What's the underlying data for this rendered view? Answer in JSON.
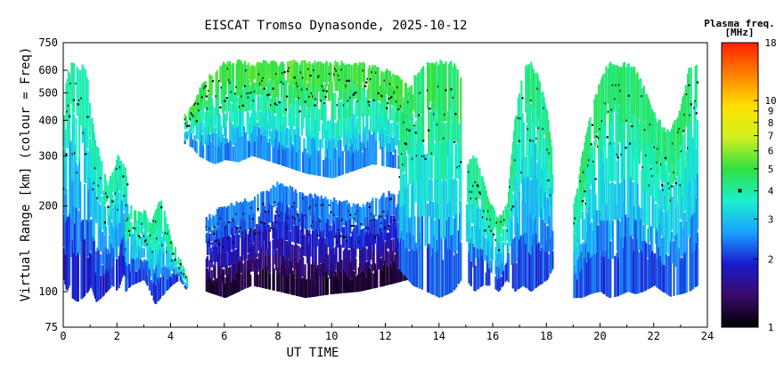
{
  "chart_data": {
    "type": "heatmap",
    "title": "EISCAT Tromso Dynasonde, 2025-10-12",
    "xlabel": "UT TIME",
    "ylabel": "Virtual Range [km] (colour = Freq)",
    "x_ticks": [
      "0",
      "2",
      "4",
      "6",
      "8",
      "10",
      "12",
      "14",
      "16",
      "18",
      "20",
      "22",
      "24"
    ],
    "xlim": [
      0,
      24
    ],
    "y_ticks": [
      {
        "value": 75,
        "label": "75"
      },
      {
        "value": 100,
        "label": "100"
      },
      {
        "value": 200,
        "label": "200"
      },
      {
        "value": 300,
        "label": "300"
      },
      {
        "value": 400,
        "label": "400"
      },
      {
        "value": 500,
        "label": "500"
      },
      {
        "value": 600,
        "label": "600"
      },
      {
        "value": 750,
        "label": "750"
      }
    ],
    "ylim": [
      75,
      750
    ],
    "y_scale": "log",
    "colorbar": {
      "title_line1": "Plasma freq.",
      "title_line2": "[MHz]",
      "scale": "log",
      "range": [
        1,
        18
      ],
      "ticks": [
        {
          "value": 1,
          "label": "1"
        },
        {
          "value": 2,
          "label": "2"
        },
        {
          "value": 3,
          "label": "3"
        },
        {
          "value": 4,
          "label": "4"
        },
        {
          "value": 5,
          "label": "5"
        },
        {
          "value": 6,
          "label": "6"
        },
        {
          "value": 7,
          "label": "7"
        },
        {
          "value": 8,
          "label": "8"
        },
        {
          "value": 9,
          "label": "9"
        },
        {
          "value": 10,
          "label": "10"
        },
        {
          "value": 18,
          "label": "18"
        }
      ],
      "marker_value": 4,
      "colors": [
        "#000000",
        "#3a0a6a",
        "#1a1ad0",
        "#1aa0ff",
        "#1af0d0",
        "#30e040",
        "#d0f020",
        "#ffe000",
        "#ff8000",
        "#ff2000"
      ]
    },
    "traces": [
      {
        "x": [
          0.0,
          0.1,
          0.2,
          0.3,
          0.5,
          0.7,
          0.9,
          1.0,
          1.2,
          1.4,
          1.6,
          1.8,
          2.0,
          2.2,
          2.4
        ],
        "low": [
          110,
          100,
          105,
          95,
          92,
          95,
          100,
          105,
          92,
          95,
          100,
          105,
          100,
          115,
          110
        ],
        "high": [
          420,
          560,
          600,
          630,
          600,
          630,
          560,
          420,
          330,
          290,
          240,
          260,
          300,
          280,
          250
        ],
        "fmax": 4.2
      },
      {
        "x": [
          2.3,
          2.5,
          3.0,
          3.2,
          3.4,
          3.6,
          3.8,
          4.0,
          4.3,
          4.6
        ],
        "low": [
          100,
          105,
          110,
          100,
          90,
          95,
          100,
          105,
          110,
          100
        ],
        "high": [
          180,
          200,
          190,
          170,
          190,
          210,
          180,
          150,
          130,
          110
        ],
        "fmax": 4.5
      },
      {
        "x": [
          4.5,
          4.8,
          5.0,
          5.3,
          5.6,
          6.0,
          6.5,
          7.0,
          7.5,
          8.0,
          8.5,
          9.0,
          9.5,
          10.0,
          10.5,
          11.0,
          11.5,
          12.0,
          12.5,
          13.0
        ],
        "low": [
          330,
          320,
          300,
          290,
          280,
          290,
          285,
          300,
          290,
          280,
          270,
          260,
          255,
          250,
          260,
          270,
          280,
          275,
          270,
          280
        ],
        "high": [
          420,
          450,
          500,
          560,
          600,
          640,
          640,
          630,
          640,
          630,
          640,
          640,
          630,
          640,
          640,
          630,
          620,
          600,
          560,
          500
        ],
        "fmax": 5.5
      },
      {
        "x": [
          5.3,
          6.0,
          7.0,
          8.0,
          9.0,
          10.0,
          11.0,
          12.0,
          12.8
        ],
        "low": [
          100,
          95,
          105,
          100,
          95,
          98,
          100,
          105,
          110
        ],
        "high": [
          180,
          200,
          210,
          240,
          220,
          210,
          200,
          220,
          230
        ],
        "fmax": 2.6
      },
      {
        "x": [
          12.5,
          13.0,
          13.5,
          14.0,
          14.5,
          14.8
        ],
        "low": [
          120,
          105,
          100,
          95,
          100,
          110
        ],
        "high": [
          420,
          560,
          630,
          640,
          630,
          560
        ],
        "fmax": 5.0
      },
      {
        "x": [
          15.0,
          15.3,
          15.6,
          15.9,
          16.2,
          16.5,
          16.8,
          17.1,
          17.4,
          17.7,
          18.0,
          18.2
        ],
        "low": [
          110,
          100,
          105,
          105,
          100,
          110,
          100,
          105,
          100,
          105,
          110,
          120
        ],
        "high": [
          280,
          300,
          250,
          200,
          180,
          200,
          400,
          600,
          630,
          560,
          430,
          300
        ],
        "fmax": 4.6
      },
      {
        "x": [
          19.0,
          19.3,
          19.6,
          20.0,
          20.3,
          20.6,
          21.0,
          21.3,
          21.6,
          22.0,
          22.3,
          22.6,
          23.0,
          23.3,
          23.6
        ],
        "low": [
          95,
          95,
          98,
          100,
          95,
          96,
          100,
          98,
          100,
          105,
          100,
          96,
          98,
          100,
          105
        ],
        "high": [
          200,
          300,
          420,
          560,
          630,
          620,
          630,
          600,
          520,
          420,
          380,
          360,
          450,
          620,
          640
        ],
        "fmax": 4.8
      }
    ]
  }
}
